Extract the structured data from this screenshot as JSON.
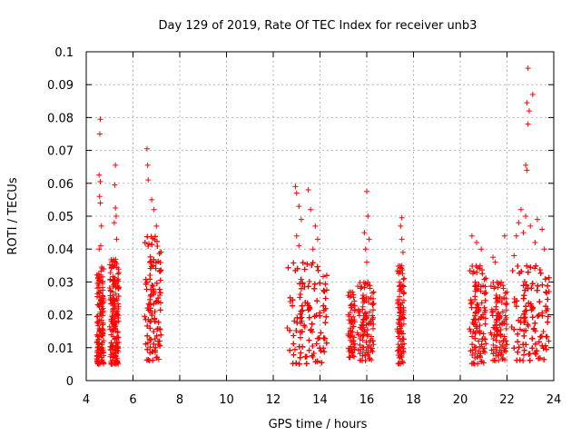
{
  "chart_data": {
    "type": "scatter",
    "title": "Day 129 of 2019, Rate Of TEC Index for receiver unb3",
    "xlabel": "GPS time / hours",
    "ylabel": "ROTI / TECUs",
    "xlim": [
      4,
      24
    ],
    "ylim": [
      0,
      0.1
    ],
    "grid": true,
    "marker": "+",
    "color": "#ff0000",
    "x_ticks": [
      {
        "value": 4,
        "label": "4"
      },
      {
        "value": 6,
        "label": "6"
      },
      {
        "value": 8,
        "label": "8"
      },
      {
        "value": 10,
        "label": "10"
      },
      {
        "value": 12,
        "label": "12"
      },
      {
        "value": 14,
        "label": "14"
      },
      {
        "value": 16,
        "label": "16"
      },
      {
        "value": 18,
        "label": "18"
      },
      {
        "value": 20,
        "label": "20"
      },
      {
        "value": 22,
        "label": "22"
      },
      {
        "value": 24,
        "label": "24"
      }
    ],
    "y_ticks": [
      {
        "value": 0,
        "label": "0"
      },
      {
        "value": 0.01,
        "label": "0.01"
      },
      {
        "value": 0.02,
        "label": "0.02"
      },
      {
        "value": 0.03,
        "label": "0.03"
      },
      {
        "value": 0.04,
        "label": "0.04"
      },
      {
        "value": 0.05,
        "label": "0.05"
      },
      {
        "value": 0.06,
        "label": "0.06"
      },
      {
        "value": 0.07,
        "label": "0.07"
      },
      {
        "value": 0.08,
        "label": "0.08"
      },
      {
        "value": 0.09,
        "label": "0.09"
      },
      {
        "value": 0.1,
        "label": "0.1"
      }
    ],
    "clusters": [
      {
        "x_range": [
          4.45,
          4.75
        ],
        "y_range": [
          0.005,
          0.035
        ],
        "count": 160
      },
      {
        "x_range": [
          5.0,
          5.4
        ],
        "y_range": [
          0.005,
          0.037
        ],
        "count": 190
      },
      {
        "x_range": [
          6.5,
          7.2
        ],
        "y_range": [
          0.006,
          0.044
        ],
        "count": 330
      },
      {
        "x_range": [
          12.6,
          14.3
        ],
        "y_range": [
          0.005,
          0.036
        ],
        "count": 640
      },
      {
        "x_range": [
          15.2,
          15.5
        ],
        "y_range": [
          0.007,
          0.027
        ],
        "count": 70
      },
      {
        "x_range": [
          15.6,
          16.3
        ],
        "y_range": [
          0.006,
          0.03
        ],
        "count": 170
      },
      {
        "x_range": [
          17.3,
          17.6
        ],
        "y_range": [
          0.005,
          0.035
        ],
        "count": 110
      },
      {
        "x_range": [
          20.4,
          21.1
        ],
        "y_range": [
          0.005,
          0.035
        ],
        "count": 220
      },
      {
        "x_range": [
          21.3,
          22.0
        ],
        "y_range": [
          0.006,
          0.03
        ],
        "count": 160
      },
      {
        "x_range": [
          22.2,
          23.8
        ],
        "y_range": [
          0.006,
          0.035
        ],
        "count": 600
      }
    ],
    "outliers": [
      {
        "x": 4.6,
        "y": 0.0795
      },
      {
        "x": 4.58,
        "y": 0.075
      },
      {
        "x": 4.55,
        "y": 0.0625
      },
      {
        "x": 4.6,
        "y": 0.0605
      },
      {
        "x": 4.57,
        "y": 0.056
      },
      {
        "x": 4.6,
        "y": 0.054
      },
      {
        "x": 4.55,
        "y": 0.04
      },
      {
        "x": 4.62,
        "y": 0.041
      },
      {
        "x": 4.65,
        "y": 0.047
      },
      {
        "x": 5.25,
        "y": 0.0655
      },
      {
        "x": 5.22,
        "y": 0.0595
      },
      {
        "x": 5.25,
        "y": 0.0525
      },
      {
        "x": 5.2,
        "y": 0.048
      },
      {
        "x": 5.28,
        "y": 0.05
      },
      {
        "x": 5.3,
        "y": 0.043
      },
      {
        "x": 6.6,
        "y": 0.0705
      },
      {
        "x": 6.63,
        "y": 0.0655
      },
      {
        "x": 6.65,
        "y": 0.061
      },
      {
        "x": 6.8,
        "y": 0.055
      },
      {
        "x": 6.9,
        "y": 0.052
      },
      {
        "x": 7.0,
        "y": 0.047
      },
      {
        "x": 12.95,
        "y": 0.059
      },
      {
        "x": 13.0,
        "y": 0.057
      },
      {
        "x": 13.1,
        "y": 0.053
      },
      {
        "x": 13.2,
        "y": 0.049
      },
      {
        "x": 13.5,
        "y": 0.058
      },
      {
        "x": 13.6,
        "y": 0.052
      },
      {
        "x": 13.8,
        "y": 0.047
      },
      {
        "x": 13.0,
        "y": 0.044
      },
      {
        "x": 13.9,
        "y": 0.043
      },
      {
        "x": 13.1,
        "y": 0.041
      },
      {
        "x": 13.7,
        "y": 0.04
      },
      {
        "x": 16.0,
        "y": 0.0575
      },
      {
        "x": 16.05,
        "y": 0.05
      },
      {
        "x": 15.9,
        "y": 0.045
      },
      {
        "x": 16.1,
        "y": 0.043
      },
      {
        "x": 15.95,
        "y": 0.04
      },
      {
        "x": 16.0,
        "y": 0.036
      },
      {
        "x": 17.5,
        "y": 0.0495
      },
      {
        "x": 17.45,
        "y": 0.047
      },
      {
        "x": 17.5,
        "y": 0.043
      },
      {
        "x": 17.55,
        "y": 0.039
      },
      {
        "x": 20.5,
        "y": 0.044
      },
      {
        "x": 20.7,
        "y": 0.042
      },
      {
        "x": 20.9,
        "y": 0.04
      },
      {
        "x": 21.4,
        "y": 0.0375
      },
      {
        "x": 21.9,
        "y": 0.044
      },
      {
        "x": 21.5,
        "y": 0.036
      },
      {
        "x": 22.9,
        "y": 0.095
      },
      {
        "x": 23.1,
        "y": 0.087
      },
      {
        "x": 22.85,
        "y": 0.0845
      },
      {
        "x": 22.95,
        "y": 0.082
      },
      {
        "x": 22.9,
        "y": 0.078
      },
      {
        "x": 22.8,
        "y": 0.0655
      },
      {
        "x": 22.85,
        "y": 0.064
      },
      {
        "x": 22.6,
        "y": 0.052
      },
      {
        "x": 22.8,
        "y": 0.05
      },
      {
        "x": 23.0,
        "y": 0.047
      },
      {
        "x": 22.5,
        "y": 0.048
      },
      {
        "x": 22.7,
        "y": 0.045
      },
      {
        "x": 23.3,
        "y": 0.049
      },
      {
        "x": 23.5,
        "y": 0.046
      },
      {
        "x": 22.4,
        "y": 0.044
      },
      {
        "x": 23.2,
        "y": 0.042
      },
      {
        "x": 23.6,
        "y": 0.04
      },
      {
        "x": 22.3,
        "y": 0.038
      }
    ]
  }
}
